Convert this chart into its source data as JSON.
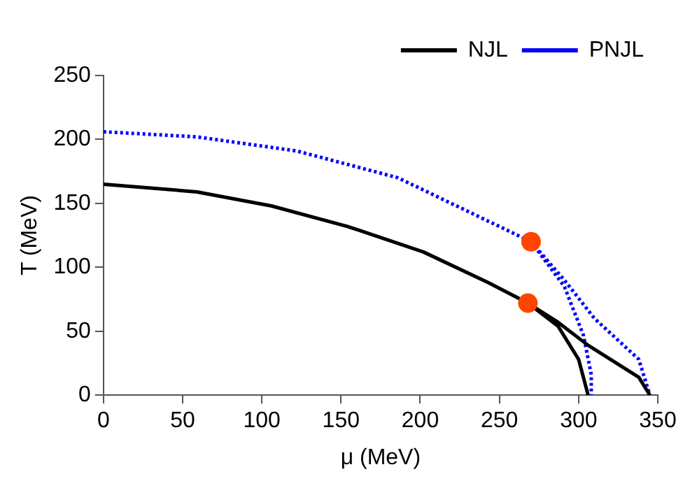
{
  "chart_data": {
    "type": "line",
    "xlabel": "μ (MeV)",
    "ylabel": "T (MeV)",
    "xlim": [
      0,
      350
    ],
    "xticks": [
      0,
      50,
      100,
      150,
      200,
      250,
      300,
      350
    ],
    "ylim": [
      0,
      250
    ],
    "yticks": [
      0,
      50,
      100,
      150,
      200,
      250
    ],
    "grid": false,
    "legend": "top right",
    "series": [
      {
        "name": "NJL",
        "color": "#000000",
        "line_style": "solid",
        "marker": "none",
        "x": [
          0,
          59,
          106,
          154,
          202,
          243,
          268,
          287,
          306,
          338,
          345
        ],
        "values": [
          165,
          159,
          148,
          132,
          112,
          88,
          72,
          57,
          39,
          14,
          0
        ]
      },
      {
        "color": "#000000",
        "line_style": "solid",
        "marker": "none",
        "x": [
          268,
          287,
          300,
          306
        ],
        "values": [
          72,
          54,
          28,
          0
        ]
      },
      {
        "name": "PNJL",
        "color": "#0000ff",
        "line_style": "dotted",
        "marker": "none",
        "x": [
          0,
          59,
          122,
          186,
          233,
          270,
          291,
          310,
          338,
          345
        ],
        "values": [
          206,
          202,
          191,
          170,
          142,
          120,
          90,
          60,
          28,
          0
        ]
      },
      {
        "color": "#0000ff",
        "line_style": "dotted",
        "marker": "none",
        "x": [
          270,
          291,
          303,
          308,
          308
        ],
        "values": [
          120,
          85,
          47,
          16,
          0
        ]
      },
      {
        "type": "scatter",
        "color": "#ff4500",
        "marker": "circle",
        "x": [
          268,
          270
        ],
        "values": [
          72,
          120
        ]
      }
    ]
  }
}
